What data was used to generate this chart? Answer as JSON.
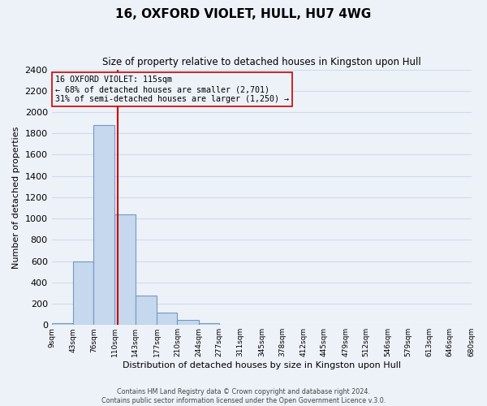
{
  "title": "16, OXFORD VIOLET, HULL, HU7 4WG",
  "subtitle": "Size of property relative to detached houses in Kingston upon Hull",
  "xlabel": "Distribution of detached houses by size in Kingston upon Hull",
  "ylabel": "Number of detached properties",
  "bin_edges": [
    9,
    43,
    76,
    110,
    143,
    177,
    210,
    244,
    277,
    311,
    345,
    378,
    412,
    445,
    479,
    512,
    546,
    579,
    613,
    646,
    680
  ],
  "bar_heights": [
    20,
    600,
    1880,
    1040,
    280,
    115,
    45,
    20,
    0,
    0,
    0,
    0,
    0,
    0,
    0,
    0,
    0,
    0,
    0,
    0
  ],
  "bar_color": "#c5d8ed",
  "bar_edgecolor": "#7398c2",
  "vline_color": "#cc0000",
  "vline_x": 115,
  "annotation_title": "16 OXFORD VIOLET: 115sqm",
  "annotation_line1": "← 68% of detached houses are smaller (2,701)",
  "annotation_line2": "31% of semi-detached houses are larger (1,250) →",
  "annotation_box_edgecolor": "#cc0000",
  "ylim": [
    0,
    2400
  ],
  "yticks": [
    0,
    200,
    400,
    600,
    800,
    1000,
    1200,
    1400,
    1600,
    1800,
    2000,
    2200,
    2400
  ],
  "footer1": "Contains HM Land Registry data © Crown copyright and database right 2024.",
  "footer2": "Contains public sector information licensed under the Open Government Licence v.3.0.",
  "bg_color": "#edf2f9",
  "grid_color": "#d0daea",
  "tick_labels": [
    "9sqm",
    "43sqm",
    "76sqm",
    "110sqm",
    "143sqm",
    "177sqm",
    "210sqm",
    "244sqm",
    "277sqm",
    "311sqm",
    "345sqm",
    "378sqm",
    "412sqm",
    "445sqm",
    "479sqm",
    "512sqm",
    "546sqm",
    "579sqm",
    "613sqm",
    "646sqm",
    "680sqm"
  ]
}
